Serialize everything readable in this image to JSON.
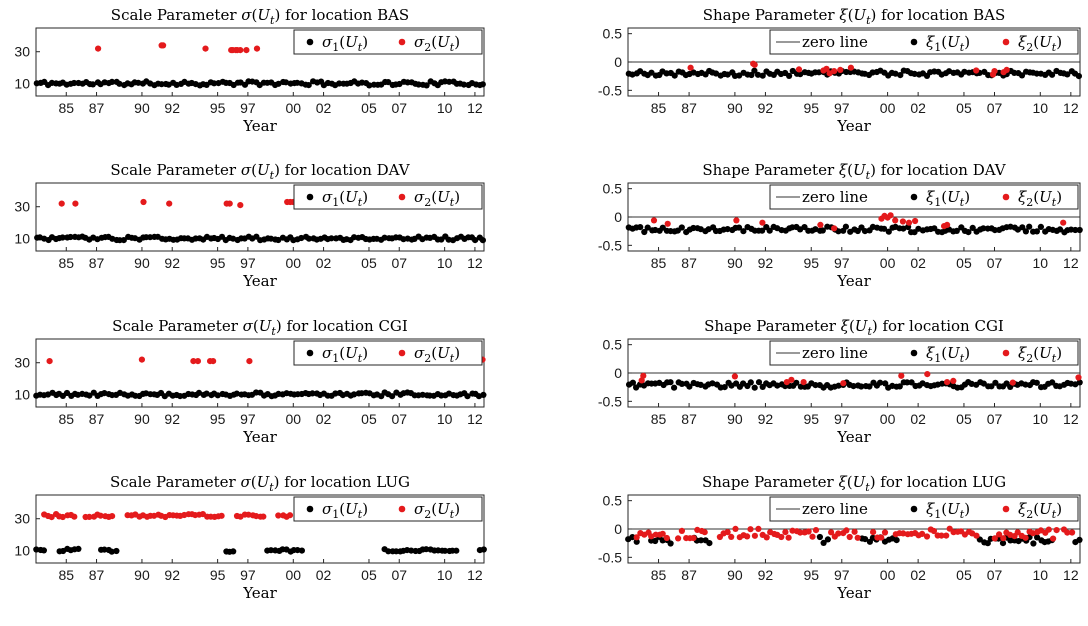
{
  "figure": {
    "xlabel": "Year"
  },
  "chart_data": [
    {
      "type": "scatter",
      "title": "Scale Parameter σ(U_t) for location BAS",
      "xlabel": "Year",
      "ylabel": "",
      "xlim": [
        1983.0,
        2012.6
      ],
      "ylim": [
        2,
        45
      ],
      "xticks": [
        1985,
        1987,
        1990,
        1992,
        1995,
        1997,
        2000,
        2002,
        2005,
        2007,
        2010,
        2012
      ],
      "xticklabels": [
        "85",
        "87",
        "90",
        "92",
        "95",
        "97",
        "00",
        "02",
        "05",
        "07",
        "10",
        "12"
      ],
      "yticks": [
        10,
        30
      ],
      "yticklabels": [
        "10",
        "30"
      ],
      "zero_line": false,
      "legend": [
        "σ1(Ut)",
        "σ2(Ut)"
      ],
      "series": [
        {
          "name": "σ1(Ut)",
          "color": "#000000",
          "base": 10,
          "jitter": 1.3,
          "gaps": [],
          "seed": 11
        },
        {
          "name": "σ2(Ut)",
          "color": "#e41a1c",
          "x": [
            1987.1,
            1991.3,
            1991.4,
            1994.2,
            1995.9,
            1996.0,
            1996.2,
            1996.3,
            1996.5,
            1996.9,
            1997.6,
            2005.8,
            2006.9,
            2007.0,
            2007.6,
            2007.8
          ],
          "y": [
            32,
            34,
            34,
            32,
            31,
            31,
            31,
            31,
            31,
            31,
            32,
            32,
            32,
            32,
            32,
            32
          ]
        }
      ]
    },
    {
      "type": "scatter",
      "title": "Shape Parameter ξ(U_t) for location BAS",
      "xlabel": "Year",
      "ylabel": "",
      "xlim": [
        1983.0,
        2012.6
      ],
      "ylim": [
        -0.6,
        0.6
      ],
      "xticks": [
        1985,
        1987,
        1990,
        1992,
        1995,
        1997,
        2000,
        2002,
        2005,
        2007,
        2010,
        2012
      ],
      "xticklabels": [
        "85",
        "87",
        "90",
        "92",
        "95",
        "97",
        "00",
        "02",
        "05",
        "07",
        "10",
        "12"
      ],
      "yticks": [
        0.5,
        0,
        -0.5
      ],
      "yticklabels": [
        "0.5",
        "0",
        "-0.5"
      ],
      "zero_line": true,
      "legend": [
        "zero line",
        "ξ1(Ut)",
        "ξ2(Ut)"
      ],
      "series": [
        {
          "name": "ξ1(Ut)",
          "color": "#000000",
          "base": -0.2,
          "jitter": 0.05,
          "gaps": [],
          "seed": 21
        },
        {
          "name": "ξ2(Ut)",
          "color": "#e41a1c",
          "x": [
            1987.1,
            1991.2,
            1991.3,
            1994.2,
            1995.8,
            1996.0,
            1996.2,
            1996.5,
            1996.9,
            1997.6,
            2005.8,
            2006.9,
            2007.0,
            2007.6,
            2007.8
          ],
          "y": [
            -0.1,
            -0.03,
            -0.05,
            -0.13,
            -0.15,
            -0.12,
            -0.2,
            -0.16,
            -0.14,
            -0.1,
            -0.15,
            -0.22,
            -0.16,
            -0.18,
            -0.14
          ]
        }
      ]
    },
    {
      "type": "scatter",
      "title": "Scale Parameter σ(U_t) for location DAV",
      "xlabel": "Year",
      "ylabel": "",
      "xlim": [
        1983.0,
        2012.6
      ],
      "ylim": [
        2,
        45
      ],
      "xticks": [
        1985,
        1987,
        1990,
        1992,
        1995,
        1997,
        2000,
        2002,
        2005,
        2007,
        2010,
        2012
      ],
      "xticklabels": [
        "85",
        "87",
        "90",
        "92",
        "95",
        "97",
        "00",
        "02",
        "05",
        "07",
        "10",
        "12"
      ],
      "yticks": [
        10,
        30
      ],
      "yticklabels": [
        "10",
        "30"
      ],
      "zero_line": false,
      "legend": [
        "σ1(Ut)",
        "σ2(Ut)"
      ],
      "series": [
        {
          "name": "σ1(Ut)",
          "color": "#000000",
          "base": 10,
          "jitter": 1.2,
          "gaps": [],
          "seed": 31
        },
        {
          "name": "σ2(Ut)",
          "color": "#e41a1c",
          "x": [
            1984.7,
            1985.6,
            1990.1,
            1991.8,
            1995.6,
            1995.8,
            1996.5,
            1999.6,
            1999.8,
            2000.0,
            2000.2,
            2000.5,
            2001.0,
            2001.4,
            2001.8,
            2003.7,
            2003.9,
            2004.4,
            2011.5,
            2011.7
          ],
          "y": [
            32,
            32,
            33,
            32,
            32,
            32,
            31,
            33,
            33,
            33,
            33,
            33,
            33,
            33,
            33,
            32,
            32,
            32,
            32,
            32
          ]
        }
      ]
    },
    {
      "type": "scatter",
      "title": "Shape Parameter ξ(U_t) for location DAV",
      "xlabel": "Year",
      "ylabel": "",
      "xlim": [
        1983.0,
        2012.6
      ],
      "ylim": [
        -0.6,
        0.6
      ],
      "xticks": [
        1985,
        1987,
        1990,
        1992,
        1995,
        1997,
        2000,
        2002,
        2005,
        2007,
        2010,
        2012
      ],
      "xticklabels": [
        "85",
        "87",
        "90",
        "92",
        "95",
        "97",
        "00",
        "02",
        "05",
        "07",
        "10",
        "12"
      ],
      "yticks": [
        0.5,
        0,
        -0.5
      ],
      "yticklabels": [
        "0.5",
        "0",
        "-0.5"
      ],
      "zero_line": true,
      "legend": [
        "zero line",
        "ξ1(Ut)",
        "ξ2(Ut)"
      ],
      "series": [
        {
          "name": "ξ1(Ut)",
          "color": "#000000",
          "base": -0.22,
          "jitter": 0.05,
          "gaps": [],
          "seed": 41
        },
        {
          "name": "ξ2(Ut)",
          "color": "#e41a1c",
          "x": [
            1984.7,
            1985.6,
            1990.1,
            1991.8,
            1995.6,
            1996.5,
            1999.6,
            1999.8,
            2000.0,
            2000.2,
            2000.5,
            2001.0,
            2001.4,
            2001.8,
            2003.7,
            2003.9,
            2011.5
          ],
          "y": [
            -0.06,
            -0.12,
            -0.06,
            -0.1,
            -0.14,
            -0.2,
            -0.03,
            0.02,
            -0.01,
            0.03,
            -0.06,
            -0.08,
            -0.1,
            -0.07,
            -0.16,
            -0.14,
            -0.1
          ]
        }
      ]
    },
    {
      "type": "scatter",
      "title": "Scale Parameter σ(U_t) for location CGI",
      "xlabel": "Year",
      "ylabel": "",
      "xlim": [
        1983.0,
        2012.6
      ],
      "ylim": [
        2,
        45
      ],
      "xticks": [
        1985,
        1987,
        1990,
        1992,
        1995,
        1997,
        2000,
        2002,
        2005,
        2007,
        2010,
        2012
      ],
      "xticklabels": [
        "85",
        "87",
        "90",
        "92",
        "95",
        "97",
        "00",
        "02",
        "05",
        "07",
        "10",
        "12"
      ],
      "yticks": [
        10,
        30
      ],
      "yticklabels": [
        "10",
        "30"
      ],
      "zero_line": false,
      "legend": [
        "σ1(Ut)",
        "σ2(Ut)"
      ],
      "series": [
        {
          "name": "σ1(Ut)",
          "color": "#000000",
          "base": 10,
          "jitter": 1.2,
          "gaps": [],
          "seed": 51
        },
        {
          "name": "σ2(Ut)",
          "color": "#e41a1c",
          "x": [
            1983.9,
            1990.0,
            1993.4,
            1993.7,
            1994.5,
            1994.7,
            1997.1,
            2000.9,
            2002.6,
            2003.9,
            2004.3,
            2008.2,
            2012.5
          ],
          "y": [
            31,
            32,
            31,
            31,
            31,
            31,
            31,
            32,
            32,
            31,
            31,
            31,
            32
          ]
        }
      ]
    },
    {
      "type": "scatter",
      "title": "Shape Parameter ξ(U_t) for location CGI",
      "xlabel": "Year",
      "ylabel": "",
      "xlim": [
        1983.0,
        2012.6
      ],
      "ylim": [
        -0.6,
        0.6
      ],
      "xticks": [
        1985,
        1987,
        1990,
        1992,
        1995,
        1997,
        2000,
        2002,
        2005,
        2007,
        2010,
        2012
      ],
      "xticklabels": [
        "85",
        "87",
        "90",
        "92",
        "95",
        "97",
        "00",
        "02",
        "05",
        "07",
        "10",
        "12"
      ],
      "yticks": [
        0.5,
        0,
        -0.5
      ],
      "yticklabels": [
        "0.5",
        "0",
        "-0.5"
      ],
      "zero_line": true,
      "legend": [
        "zero line",
        "ξ1(Ut)",
        "ξ2(Ut)"
      ],
      "series": [
        {
          "name": "ξ1(Ut)",
          "color": "#000000",
          "base": -0.21,
          "jitter": 0.05,
          "gaps": [],
          "seed": 61
        },
        {
          "name": "ξ2(Ut)",
          "color": "#e41a1c",
          "x": [
            1983.9,
            1984.0,
            1990.0,
            1993.4,
            1993.7,
            1994.5,
            1997.1,
            2000.9,
            2002.6,
            2003.9,
            2004.3,
            2008.2,
            2012.5
          ],
          "y": [
            -0.13,
            -0.05,
            -0.06,
            -0.16,
            -0.12,
            -0.16,
            -0.18,
            -0.05,
            -0.02,
            -0.16,
            -0.14,
            -0.17,
            -0.08
          ]
        }
      ]
    },
    {
      "type": "scatter",
      "title": "Scale Parameter σ(U_t) for location LUG",
      "xlabel": "Year",
      "ylabel": "",
      "xlim": [
        1983.0,
        2012.6
      ],
      "ylim": [
        2,
        45
      ],
      "xticks": [
        1985,
        1987,
        1990,
        1992,
        1995,
        1997,
        2000,
        2002,
        2005,
        2007,
        2010,
        2012
      ],
      "xticklabels": [
        "85",
        "87",
        "90",
        "92",
        "95",
        "97",
        "00",
        "02",
        "05",
        "07",
        "10",
        "12"
      ],
      "yticks": [
        10,
        30
      ],
      "yticklabels": [
        "10",
        "30"
      ],
      "zero_line": false,
      "legend": [
        "σ1(Ut)",
        "σ2(Ut)"
      ],
      "series": [
        {
          "name": "σ1(Ut)",
          "color": "#000000",
          "base": 10,
          "jitter": 1.0,
          "gaps": [
            [
              1983.6,
              1984.4
            ],
            [
              1985.9,
              1987.1
            ],
            [
              1988.4,
              1995.3
            ],
            [
              1996.3,
              1998.1
            ],
            [
              2000.6,
              2005.9
            ],
            [
              2011.0,
              2012.2
            ]
          ],
          "seed": 71
        },
        {
          "name": "σ2(Ut)",
          "color": "#e41a1c",
          "base": 32,
          "jitter": 1.0,
          "gaps": [
            [
              1982.0,
              1983.5
            ],
            [
              1985.8,
              1986.1
            ],
            [
              1988.3,
              1988.9
            ],
            [
              1995.4,
              1996.2
            ],
            [
              1998.2,
              1998.9
            ],
            [
              2000.0,
              2000.5
            ],
            [
              2006.0,
              2006.8
            ],
            [
              2011.1,
              2011.5
            ],
            [
              2012.2,
              2013.0
            ]
          ],
          "seed": 81
        }
      ]
    },
    {
      "type": "scatter",
      "title": "Shape Parameter ξ(U_t) for location LUG",
      "xlabel": "Year",
      "ylabel": "",
      "xlim": [
        1983.0,
        2012.6
      ],
      "ylim": [
        -0.6,
        0.6
      ],
      "xticks": [
        1985,
        1987,
        1990,
        1992,
        1995,
        1997,
        2000,
        2002,
        2005,
        2007,
        2010,
        2012
      ],
      "xticklabels": [
        "85",
        "87",
        "90",
        "92",
        "95",
        "97",
        "00",
        "02",
        "05",
        "07",
        "10",
        "12"
      ],
      "yticks": [
        0.5,
        0,
        -0.5
      ],
      "yticklabels": [
        "0.5",
        "0",
        "-0.5"
      ],
      "zero_line": true,
      "legend": [
        "zero line",
        "ξ1(Ut)",
        "ξ2(Ut)"
      ],
      "series": [
        {
          "name": "ξ1(Ut)",
          "color": "#000000",
          "base": -0.2,
          "jitter": 0.06,
          "gaps": [
            [
              1983.6,
              1984.4
            ],
            [
              1985.9,
              1987.1
            ],
            [
              1988.4,
              1995.3
            ],
            [
              1996.3,
              1998.1
            ],
            [
              2000.6,
              2005.9
            ],
            [
              2011.0,
              2012.2
            ]
          ],
          "seed": 91
        },
        {
          "name": "ξ2(Ut)",
          "color": "#e41a1c",
          "base": -0.08,
          "jitter": 0.09,
          "gaps": [
            [
              1982.0,
              1983.5
            ],
            [
              1985.8,
              1986.1
            ],
            [
              1988.3,
              1988.9
            ],
            [
              1995.4,
              1996.2
            ],
            [
              1998.2,
              1998.9
            ],
            [
              2000.0,
              2000.5
            ],
            [
              2006.0,
              2006.8
            ],
            [
              2011.1,
              2011.5
            ],
            [
              2012.2,
              2013.0
            ]
          ],
          "seed": 101
        }
      ]
    }
  ]
}
